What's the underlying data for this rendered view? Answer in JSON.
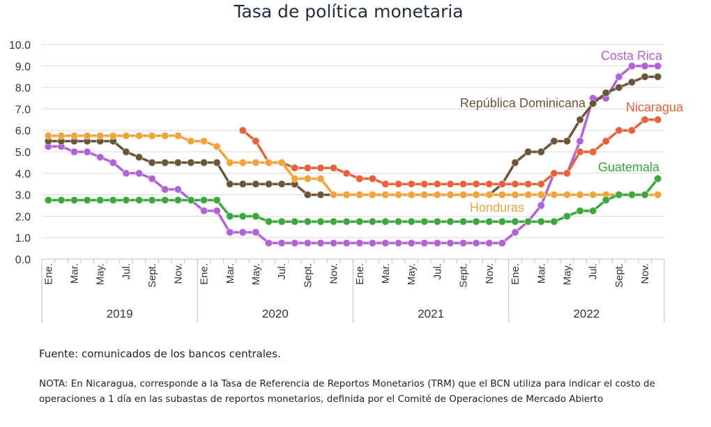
{
  "title": "Tasa de política monetaria",
  "source": "Fuente: comunicados de los bancos centrales.",
  "note": "NOTA: En Nicaragua, corresponde a la Tasa de Referencia de Reportos Monetarios (TRM) que el BCN utiliza para indicar el costo de operaciones a 1 día en las subastas de reportos monetarios, definida por el Comité de Operaciones de Mercado Abierto",
  "chart_data": {
    "type": "line",
    "title": "Tasa de política monetaria",
    "ylim": [
      0,
      10
    ],
    "yticks": [
      "0.0",
      "1.0",
      "2.0",
      "3.0",
      "4.0",
      "5.0",
      "6.0",
      "7.0",
      "8.0",
      "9.0",
      "10.0"
    ],
    "grid": true,
    "years": [
      "2019",
      "2020",
      "2021",
      "2022"
    ],
    "month_labels": [
      "Ene.",
      "",
      "Mar.",
      "",
      "May.",
      "",
      "Jul.",
      "",
      "Sept.",
      "",
      "Nov.",
      ""
    ],
    "series": [
      {
        "name": "Costa Rica",
        "color": "#b062d6",
        "values": [
          5.25,
          5.25,
          5.0,
          5.0,
          4.75,
          4.5,
          4.0,
          4.0,
          3.75,
          3.25,
          3.25,
          2.75,
          2.25,
          2.25,
          1.25,
          1.25,
          1.25,
          0.75,
          0.75,
          0.75,
          0.75,
          0.75,
          0.75,
          0.75,
          0.75,
          0.75,
          0.75,
          0.75,
          0.75,
          0.75,
          0.75,
          0.75,
          0.75,
          0.75,
          0.75,
          0.75,
          1.25,
          1.75,
          2.5,
          4.0,
          4.0,
          5.5,
          7.5,
          7.5,
          8.5,
          9.0,
          9.0,
          9.0
        ]
      },
      {
        "name": "República Dominicana",
        "color": "#6b5536",
        "values": [
          5.5,
          5.5,
          5.5,
          5.5,
          5.5,
          5.5,
          5.0,
          4.75,
          4.5,
          4.5,
          4.5,
          4.5,
          4.5,
          4.5,
          3.5,
          3.5,
          3.5,
          3.5,
          3.5,
          3.5,
          3.0,
          3.0,
          3.0,
          3.0,
          3.0,
          3.0,
          3.0,
          3.0,
          3.0,
          3.0,
          3.0,
          3.0,
          3.0,
          3.0,
          3.0,
          3.5,
          4.5,
          5.0,
          5.0,
          5.5,
          5.5,
          6.5,
          7.25,
          7.75,
          8.0,
          8.25,
          8.5,
          8.5
        ]
      },
      {
        "name": "Nicaragua",
        "color": "#e8613a",
        "start_index": 15,
        "values": [
          6.0,
          5.5,
          4.5,
          4.5,
          4.25,
          4.25,
          4.25,
          4.25,
          4.0,
          3.75,
          3.75,
          3.5,
          3.5,
          3.5,
          3.5,
          3.5,
          3.5,
          3.5,
          3.5,
          3.5,
          3.5,
          3.5,
          3.5,
          3.5,
          4.0,
          4.0,
          5.0,
          5.0,
          5.5,
          6.0,
          6.0,
          6.5,
          6.5
        ]
      },
      {
        "name": "Honduras",
        "color": "#f2a33a",
        "values": [
          5.75,
          5.75,
          5.75,
          5.75,
          5.75,
          5.75,
          5.75,
          5.75,
          5.75,
          5.75,
          5.75,
          5.5,
          5.5,
          5.25,
          4.5,
          4.5,
          4.5,
          4.5,
          4.5,
          3.75,
          3.75,
          3.75,
          3.0,
          3.0,
          3.0,
          3.0,
          3.0,
          3.0,
          3.0,
          3.0,
          3.0,
          3.0,
          3.0,
          3.0,
          3.0,
          3.0,
          3.0,
          3.0,
          3.0,
          3.0,
          3.0,
          3.0,
          3.0,
          3.0,
          3.0,
          3.0,
          3.0,
          3.0
        ]
      },
      {
        "name": "Guatemala",
        "color": "#3aa83a",
        "values": [
          2.75,
          2.75,
          2.75,
          2.75,
          2.75,
          2.75,
          2.75,
          2.75,
          2.75,
          2.75,
          2.75,
          2.75,
          2.75,
          2.75,
          2.0,
          2.0,
          2.0,
          1.75,
          1.75,
          1.75,
          1.75,
          1.75,
          1.75,
          1.75,
          1.75,
          1.75,
          1.75,
          1.75,
          1.75,
          1.75,
          1.75,
          1.75,
          1.75,
          1.75,
          1.75,
          1.75,
          1.75,
          1.75,
          1.75,
          1.75,
          2.0,
          2.25,
          2.25,
          2.75,
          3.0,
          3.0,
          3.0,
          3.75
        ]
      }
    ]
  }
}
